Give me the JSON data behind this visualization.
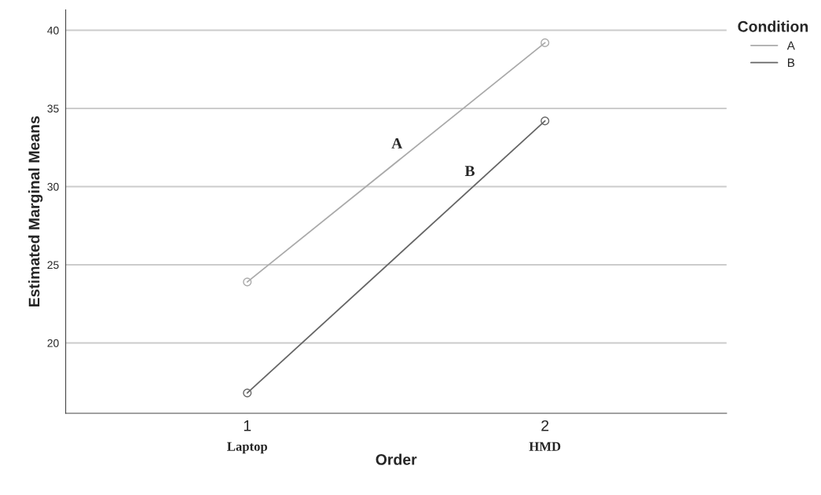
{
  "chart_data": {
    "type": "line",
    "xlabel": "Order",
    "ylabel": "Estimated Marginal Means",
    "legend_title": "Condition",
    "x": [
      1,
      2
    ],
    "xlim": [
      0.39,
      2.61
    ],
    "xticks": [
      1,
      2
    ],
    "ylim": [
      15.5,
      41.3
    ],
    "yticks": [
      20,
      25,
      30,
      35,
      40
    ],
    "series": [
      {
        "name": "A",
        "color": "#aaaaaa",
        "values": [
          23.9,
          39.2
        ]
      },
      {
        "name": "B",
        "color": "#666666",
        "values": [
          16.8,
          34.2
        ]
      }
    ],
    "marker": "circle",
    "line_style": "solid",
    "grid": "y",
    "legend": "top right",
    "annotations": [
      "A",
      "B",
      "Laptop",
      "HMD"
    ]
  }
}
